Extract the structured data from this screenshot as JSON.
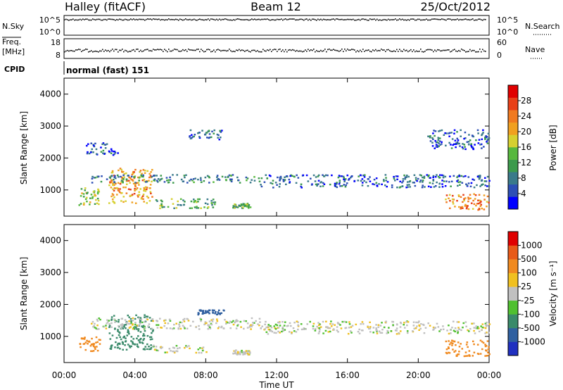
{
  "header": {
    "station": "Halley (fitACF)",
    "beam": "Beam 12",
    "date": "25/Oct/2012"
  },
  "aux": {
    "nsky_label": "N.Sky",
    "nsky_ticks": [
      "10^5",
      "10^0"
    ],
    "nsearch_label": "N.Search",
    "nsearch_ticks": [
      "10^5",
      "10^0"
    ],
    "freq_label_1": "Freq.",
    "freq_label_2": "[MHz]",
    "freq_ticks": [
      "18",
      "8"
    ],
    "nave_label": "Nave",
    "nave_ticks": [
      "60",
      "0"
    ],
    "cpid_label": "CPID",
    "cpid_value": "normal (fast) 151"
  },
  "chart_data": [
    {
      "type": "heatmap",
      "name": "power",
      "ylabel": "Slant Range [km]",
      "xlabel": "Time UT",
      "xlim_hours": [
        0,
        24
      ],
      "ylim": [
        180,
        4500
      ],
      "y_ticks": [
        "4000",
        "3000",
        "2000",
        "1000"
      ],
      "y_tick_values": [
        4000,
        3000,
        2000,
        1000
      ],
      "colorbar": {
        "label": "Power [dB]",
        "ticks": [
          "28",
          "24",
          "20",
          "16",
          "12",
          "8",
          "4"
        ],
        "tick_values": [
          28,
          24,
          20,
          16,
          12,
          8,
          4
        ],
        "range": [
          0,
          30
        ],
        "colors": [
          "#0000ff",
          "#2d4fb5",
          "#3a7a8a",
          "#3c9a4c",
          "#57b83e",
          "#d6d030",
          "#f0a020",
          "#f07a20",
          "#e84018",
          "#e00000"
        ]
      },
      "features": [
        {
          "t": [
            0.8,
            2.0
          ],
          "r": [
            550,
            1100
          ],
          "level": 14
        },
        {
          "t": [
            2.5,
            5.0
          ],
          "r": [
            600,
            1700
          ],
          "level": 20
        },
        {
          "t": [
            1.5,
            11.0
          ],
          "r": [
            1250,
            1500
          ],
          "level": 8
        },
        {
          "t": [
            5.0,
            8.5
          ],
          "r": [
            450,
            750
          ],
          "level": 12
        },
        {
          "t": [
            7.0,
            9.0
          ],
          "r": [
            2600,
            2900
          ],
          "level": 6
        },
        {
          "t": [
            9.5,
            10.5
          ],
          "r": [
            450,
            600
          ],
          "level": 12
        },
        {
          "t": [
            11.0,
            24.0
          ],
          "r": [
            1100,
            1500
          ],
          "level": 6
        },
        {
          "t": [
            21.5,
            24.0
          ],
          "r": [
            400,
            900
          ],
          "level": 22
        },
        {
          "t": [
            1.2,
            3.0
          ],
          "r": [
            2100,
            2500
          ],
          "level": 5
        },
        {
          "t": [
            20.5,
            24.0
          ],
          "r": [
            2300,
            2900
          ],
          "level": 5
        }
      ]
    },
    {
      "type": "heatmap",
      "name": "velocity",
      "ylabel": "Slant Range [km]",
      "xlabel": "Time UT",
      "xlim_hours": [
        0,
        24
      ],
      "ylim": [
        180,
        4500
      ],
      "y_ticks": [
        "4000",
        "3000",
        "2000",
        "1000"
      ],
      "y_tick_values": [
        4000,
        3000,
        2000,
        1000
      ],
      "colorbar": {
        "label": "Velocity [m s⁻¹]",
        "ticks": [
          "1000",
          "500",
          "100",
          "25",
          "-25",
          "-100",
          "-500",
          "-1000"
        ],
        "tick_values": [
          1000,
          500,
          100,
          25,
          -25,
          -100,
          -500,
          -1000
        ],
        "colors": [
          "#2030c0",
          "#3060a0",
          "#3a8a6a",
          "#50c030",
          "#c0c0c0",
          "#f0c020",
          "#f08a20",
          "#e85a18",
          "#e00000"
        ]
      },
      "features": [
        {
          "t": [
            0.8,
            2.0
          ],
          "r": [
            550,
            1000
          ],
          "velocity": 150
        },
        {
          "t": [
            2.5,
            5.0
          ],
          "r": [
            600,
            1700
          ],
          "velocity": -200
        },
        {
          "t": [
            1.5,
            11.0
          ],
          "r": [
            1250,
            1600
          ],
          "velocity": 0
        },
        {
          "t": [
            5.0,
            8.0
          ],
          "r": [
            500,
            750
          ],
          "velocity": 0
        },
        {
          "t": [
            7.5,
            9.0
          ],
          "r": [
            1700,
            1850
          ],
          "velocity": -600
        },
        {
          "t": [
            9.5,
            10.5
          ],
          "r": [
            450,
            600
          ],
          "velocity": 0
        },
        {
          "t": [
            11.0,
            24.0
          ],
          "r": [
            1100,
            1500
          ],
          "velocity": 0
        },
        {
          "t": [
            21.5,
            24.0
          ],
          "r": [
            400,
            900
          ],
          "velocity": 150
        }
      ]
    }
  ],
  "x_ticks": [
    "00:00",
    "04:00",
    "08:00",
    "12:00",
    "16:00",
    "20:00",
    "00:00"
  ],
  "x_tick_hours": [
    0,
    4,
    8,
    12,
    16,
    20,
    24
  ]
}
